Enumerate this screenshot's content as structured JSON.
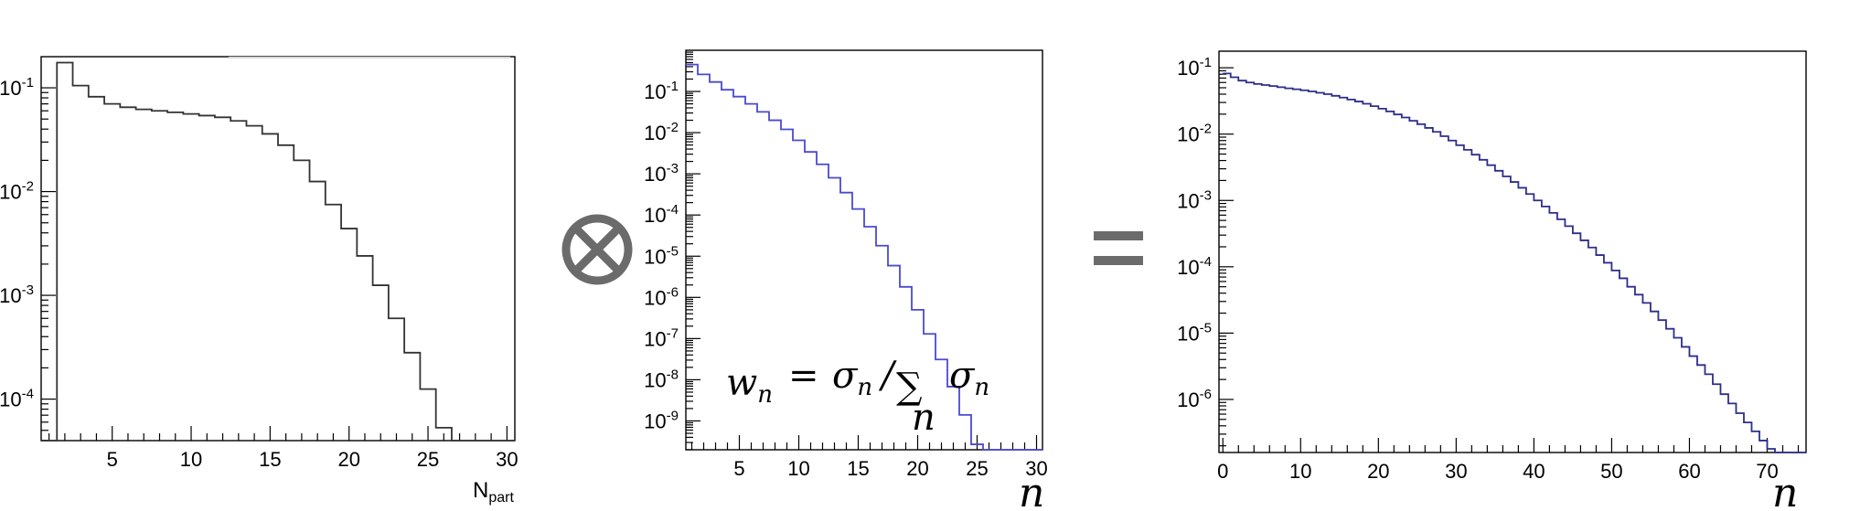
{
  "operators": {
    "convolve": "⊗",
    "equals": "="
  },
  "chart_data": [
    {
      "type": "step",
      "name": "panel-npart",
      "xlabel": "N",
      "xlabel_sub": "part",
      "log_y": true,
      "ylim_exp": [
        -4.4,
        -0.7
      ],
      "xlim": [
        0.5,
        30.5
      ],
      "x_ticks": [
        5,
        10,
        15,
        20,
        25,
        30
      ],
      "y_ticks": [
        {
          "exp": -1,
          "label": "10",
          "sup": "-1"
        },
        {
          "exp": -2,
          "label": "10",
          "sup": "-2"
        },
        {
          "exp": -3,
          "label": "10",
          "sup": "-3"
        },
        {
          "exp": -4,
          "label": "10",
          "sup": "-4"
        }
      ],
      "line_color": "#333333",
      "bin_edges": [
        0.5,
        1.5,
        2.5,
        3.5,
        4.5,
        5.5,
        6.5,
        7.5,
        8.5,
        9.5,
        10.5,
        11.5,
        12.5,
        13.5,
        14.5,
        15.5,
        16.5,
        17.5,
        18.5,
        19.5,
        20.5,
        21.5,
        22.5,
        23.5,
        24.5,
        25.5,
        26.5,
        27.5,
        28.5,
        29.5,
        30.5
      ],
      "values": [
        1e-05,
        0.175,
        0.105,
        0.082,
        0.07,
        0.065,
        0.062,
        0.06,
        0.058,
        0.056,
        0.054,
        0.052,
        0.048,
        0.043,
        0.036,
        0.028,
        0.02,
        0.0125,
        0.0075,
        0.0044,
        0.0024,
        0.00125,
        0.0006,
        0.00028,
        0.000125,
        5.3e-05,
        2.58e-05,
        1e-08,
        1e-08,
        1e-08
      ],
      "fill_to_bottom_first": true
    },
    {
      "type": "step",
      "name": "panel-weights",
      "xlabel": "n",
      "log_y": true,
      "ylim_exp": [
        -9.7,
        -0.0
      ],
      "xlim": [
        0.5,
        30.5
      ],
      "x_ticks": [
        5,
        10,
        15,
        20,
        25,
        30
      ],
      "y_ticks": [
        {
          "exp": -1,
          "label": "10",
          "sup": "-1"
        },
        {
          "exp": -2,
          "label": "10",
          "sup": "-2"
        },
        {
          "exp": -3,
          "label": "10",
          "sup": "-3"
        },
        {
          "exp": -4,
          "label": "10",
          "sup": "-4"
        },
        {
          "exp": -5,
          "label": "10",
          "sup": "-5"
        },
        {
          "exp": -6,
          "label": "10",
          "sup": "-6"
        },
        {
          "exp": -7,
          "label": "10",
          "sup": "-7"
        },
        {
          "exp": -8,
          "label": "10",
          "sup": "-8"
        },
        {
          "exp": -9,
          "label": "10",
          "sup": "-9"
        }
      ],
      "line_color": "#4a4ad0",
      "bin_edges": [
        0.5,
        1.5,
        2.5,
        3.5,
        4.5,
        5.5,
        6.5,
        7.5,
        8.5,
        9.5,
        10.5,
        11.5,
        12.5,
        13.5,
        14.5,
        15.5,
        16.5,
        17.5,
        18.5,
        19.5,
        20.5,
        21.5,
        22.5,
        23.5,
        24.5,
        25.5,
        26.5,
        27.5,
        28.5,
        29.5,
        30.5
      ],
      "values": [
        0.45,
        0.26,
        0.17,
        0.11,
        0.075,
        0.05,
        0.032,
        0.02,
        0.012,
        0.0065,
        0.0034,
        0.0017,
        0.0008,
        0.00035,
        0.00014,
        5.2e-05,
        1.8e-05,
        5.9e-06,
        1.8e-06,
        5e-07,
        1.3e-07,
        3.1e-08,
        6.8e-09,
        1.4e-09,
        2.7e-10,
        5e-11,
        8.5e-12,
        1.4e-12,
        2.2e-13,
        3e-14
      ],
      "annotation": {
        "lhs": "w",
        "lhs_sub": "n",
        "eq": "=",
        "num": "σ",
        "num_sub": "n",
        "slash": "/",
        "sum": "∑",
        "sum_sub": "n",
        "den": "σ",
        "den_sub": "n"
      }
    },
    {
      "type": "step",
      "name": "panel-result",
      "xlabel": "n",
      "log_y": true,
      "ylim_exp": [
        -6.8,
        -0.75
      ],
      "xlim": [
        -0.5,
        75
      ],
      "x_ticks": [
        0,
        10,
        20,
        30,
        40,
        50,
        60,
        70
      ],
      "y_ticks": [
        {
          "exp": -1,
          "label": "10",
          "sup": "-1"
        },
        {
          "exp": -2,
          "label": "10",
          "sup": "-2"
        },
        {
          "exp": -3,
          "label": "10",
          "sup": "-3"
        },
        {
          "exp": -4,
          "label": "10",
          "sup": "-4"
        },
        {
          "exp": -5,
          "label": "10",
          "sup": "-5"
        },
        {
          "exp": -6,
          "label": "10",
          "sup": "-6"
        }
      ],
      "line_color": "#2e2e8a",
      "bins_start": 0,
      "bin_width": 1,
      "values": [
        0.082,
        0.072,
        0.064,
        0.06,
        0.057,
        0.055,
        0.053,
        0.051,
        0.049,
        0.0475,
        0.0458,
        0.044,
        0.042,
        0.04,
        0.0378,
        0.0355,
        0.0332,
        0.031,
        0.0287,
        0.0264,
        0.0242,
        0.022,
        0.0198,
        0.0178,
        0.0159,
        0.0141,
        0.0124,
        0.0108,
        0.0093,
        0.008,
        0.0068,
        0.0058,
        0.0049,
        0.0041,
        0.0034,
        0.0028,
        0.0023,
        0.0019,
        0.00155,
        0.00125,
        0.001,
        0.00081,
        0.00065,
        0.00052,
        0.00041,
        0.00032,
        0.00025,
        0.000195,
        0.00015,
        0.000115,
        8.8e-05,
        6.7e-05,
        5e-05,
        3.8e-05,
        2.85e-05,
        2.12e-05,
        1.57e-05,
        1.16e-05,
        8.5e-06,
        6.2e-06,
        4.5e-06,
        3.3e-06,
        2.4e-06,
        1.7e-06,
        1.2e-06,
        8.7e-07,
        6.2e-07,
        4.5e-07,
        3.3e-07,
        2.4e-07,
        1.8e-07,
        1.3e-07,
        1e-07,
        7.7e-08,
        6e-08
      ]
    }
  ]
}
